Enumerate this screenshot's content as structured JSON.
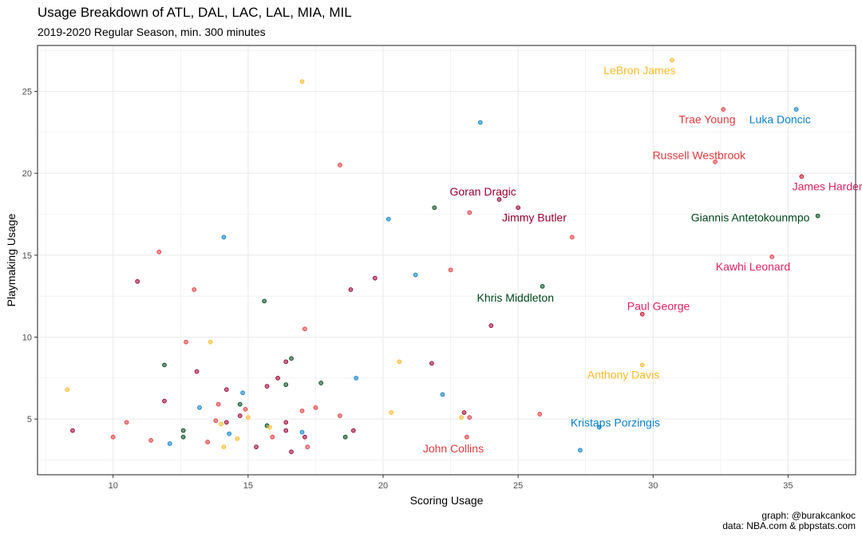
{
  "header": {
    "title": "Usage Breakdown of ATL, DAL, LAC, LAL, MIA, MIL",
    "subtitle": "2019-2020 Regular Season, min. 300 minutes"
  },
  "caption": {
    "line1": "graph: @burakcankoc",
    "line2": "data: NBA.com & pbpstats.com"
  },
  "colors": {
    "ATL": "#E03A3E",
    "DAL": "#0A7DC8",
    "LAC": "#C8102E",
    "LAL": "#FDB927",
    "MIA": "#98002E",
    "MIL": "#00471B",
    "LAC_label": "#E0245E",
    "grid": "#ebebeb",
    "panel_border": "#333333"
  },
  "chart_data": {
    "type": "scatter",
    "title": "Usage Breakdown of ATL, DAL, LAC, LAL, MIA, MIL",
    "subtitle": "2019-2020 Regular Season, min. 300 minutes",
    "xlabel": "Scoring Usage",
    "ylabel": "Playmaking Usage",
    "xlim": [
      7.2,
      37.5
    ],
    "ylim": [
      1.6,
      27.8
    ],
    "xticks": [
      10,
      15,
      20,
      25,
      30,
      35
    ],
    "yticks": [
      5,
      10,
      15,
      20,
      25
    ],
    "grid": true,
    "points": [
      {
        "x": 30.7,
        "y": 26.9,
        "team": "LAL"
      },
      {
        "x": 17.0,
        "y": 25.6,
        "team": "LAL"
      },
      {
        "x": 32.6,
        "y": 23.9,
        "team": "ATL"
      },
      {
        "x": 35.3,
        "y": 23.9,
        "team": "DAL"
      },
      {
        "x": 23.6,
        "y": 23.1,
        "team": "DAL"
      },
      {
        "x": 32.3,
        "y": 20.7,
        "team": "ATL"
      },
      {
        "x": 18.4,
        "y": 20.5,
        "team": "ATL"
      },
      {
        "x": 35.5,
        "y": 19.8,
        "team": "LAC"
      },
      {
        "x": 24.3,
        "y": 18.4,
        "team": "MIA"
      },
      {
        "x": 25.0,
        "y": 17.9,
        "team": "MIA"
      },
      {
        "x": 21.9,
        "y": 17.9,
        "team": "MIL"
      },
      {
        "x": 23.2,
        "y": 17.6,
        "team": "ATL"
      },
      {
        "x": 36.1,
        "y": 17.4,
        "team": "MIL"
      },
      {
        "x": 20.2,
        "y": 17.2,
        "team": "DAL"
      },
      {
        "x": 14.1,
        "y": 16.1,
        "team": "DAL"
      },
      {
        "x": 27.0,
        "y": 16.1,
        "team": "ATL"
      },
      {
        "x": 11.7,
        "y": 15.2,
        "team": "ATL"
      },
      {
        "x": 34.4,
        "y": 14.9,
        "team": "ATL"
      },
      {
        "x": 22.5,
        "y": 14.1,
        "team": "ATL"
      },
      {
        "x": 21.2,
        "y": 13.8,
        "team": "DAL"
      },
      {
        "x": 19.7,
        "y": 13.6,
        "team": "MIA"
      },
      {
        "x": 10.9,
        "y": 13.4,
        "team": "MIA"
      },
      {
        "x": 25.9,
        "y": 13.1,
        "team": "MIL"
      },
      {
        "x": 13.0,
        "y": 12.9,
        "team": "ATL"
      },
      {
        "x": 18.8,
        "y": 12.9,
        "team": "MIA"
      },
      {
        "x": 15.6,
        "y": 12.2,
        "team": "MIL"
      },
      {
        "x": 29.6,
        "y": 11.4,
        "team": "LAC"
      },
      {
        "x": 24.0,
        "y": 10.7,
        "team": "MIA"
      },
      {
        "x": 17.1,
        "y": 10.5,
        "team": "ATL"
      },
      {
        "x": 12.7,
        "y": 9.7,
        "team": "ATL"
      },
      {
        "x": 13.6,
        "y": 9.7,
        "team": "LAL"
      },
      {
        "x": 16.6,
        "y": 8.7,
        "team": "MIL"
      },
      {
        "x": 16.4,
        "y": 8.5,
        "team": "MIA"
      },
      {
        "x": 20.6,
        "y": 8.5,
        "team": "LAL"
      },
      {
        "x": 21.8,
        "y": 8.4,
        "team": "MIA"
      },
      {
        "x": 29.6,
        "y": 8.3,
        "team": "LAL"
      },
      {
        "x": 11.9,
        "y": 8.3,
        "team": "MIL"
      },
      {
        "x": 13.1,
        "y": 7.9,
        "team": "MIA"
      },
      {
        "x": 19.0,
        "y": 7.5,
        "team": "DAL"
      },
      {
        "x": 16.1,
        "y": 7.5,
        "team": "MIA"
      },
      {
        "x": 17.7,
        "y": 7.2,
        "team": "MIL"
      },
      {
        "x": 16.4,
        "y": 7.1,
        "team": "MIL"
      },
      {
        "x": 15.7,
        "y": 7.0,
        "team": "MIA"
      },
      {
        "x": 8.3,
        "y": 6.8,
        "team": "LAL"
      },
      {
        "x": 14.2,
        "y": 6.8,
        "team": "MIA"
      },
      {
        "x": 14.8,
        "y": 6.6,
        "team": "DAL"
      },
      {
        "x": 22.2,
        "y": 6.5,
        "team": "DAL"
      },
      {
        "x": 11.9,
        "y": 6.1,
        "team": "MIA"
      },
      {
        "x": 14.7,
        "y": 5.9,
        "team": "MIL"
      },
      {
        "x": 13.9,
        "y": 5.9,
        "team": "ATL"
      },
      {
        "x": 13.2,
        "y": 5.7,
        "team": "DAL"
      },
      {
        "x": 17.5,
        "y": 5.7,
        "team": "ATL"
      },
      {
        "x": 14.9,
        "y": 5.6,
        "team": "ATL"
      },
      {
        "x": 17.0,
        "y": 5.5,
        "team": "ATL"
      },
      {
        "x": 20.3,
        "y": 5.4,
        "team": "LAL"
      },
      {
        "x": 23.0,
        "y": 5.4,
        "team": "MIA"
      },
      {
        "x": 25.8,
        "y": 5.3,
        "team": "ATL"
      },
      {
        "x": 18.4,
        "y": 5.2,
        "team": "ATL"
      },
      {
        "x": 14.7,
        "y": 5.2,
        "team": "MIA"
      },
      {
        "x": 15.0,
        "y": 5.1,
        "team": "LAL"
      },
      {
        "x": 23.2,
        "y": 5.1,
        "team": "ATL"
      },
      {
        "x": 22.9,
        "y": 5.1,
        "team": "LAL"
      },
      {
        "x": 13.8,
        "y": 4.9,
        "team": "ATL"
      },
      {
        "x": 10.5,
        "y": 4.8,
        "team": "ATL"
      },
      {
        "x": 16.4,
        "y": 4.8,
        "team": "MIA"
      },
      {
        "x": 14.2,
        "y": 4.8,
        "team": "MIA"
      },
      {
        "x": 14.0,
        "y": 4.7,
        "team": "LAL"
      },
      {
        "x": 15.7,
        "y": 4.6,
        "team": "MIL"
      },
      {
        "x": 15.8,
        "y": 4.5,
        "team": "LAL"
      },
      {
        "x": 28.0,
        "y": 4.5,
        "team": "DAL"
      },
      {
        "x": 8.5,
        "y": 4.3,
        "team": "MIA"
      },
      {
        "x": 12.6,
        "y": 4.3,
        "team": "MIL"
      },
      {
        "x": 16.4,
        "y": 4.3,
        "team": "MIA"
      },
      {
        "x": 18.9,
        "y": 4.3,
        "team": "MIA"
      },
      {
        "x": 17.0,
        "y": 4.2,
        "team": "DAL"
      },
      {
        "x": 14.3,
        "y": 4.1,
        "team": "DAL"
      },
      {
        "x": 10.0,
        "y": 3.9,
        "team": "ATL"
      },
      {
        "x": 12.6,
        "y": 3.9,
        "team": "MIL"
      },
      {
        "x": 15.9,
        "y": 3.9,
        "team": "ATL"
      },
      {
        "x": 17.1,
        "y": 3.9,
        "team": "MIA"
      },
      {
        "x": 18.6,
        "y": 3.9,
        "team": "MIL"
      },
      {
        "x": 23.1,
        "y": 3.9,
        "team": "ATL"
      },
      {
        "x": 14.6,
        "y": 3.8,
        "team": "LAL"
      },
      {
        "x": 11.4,
        "y": 3.7,
        "team": "ATL"
      },
      {
        "x": 13.5,
        "y": 3.6,
        "team": "ATL"
      },
      {
        "x": 12.1,
        "y": 3.5,
        "team": "DAL"
      },
      {
        "x": 15.3,
        "y": 3.3,
        "team": "MIA"
      },
      {
        "x": 17.2,
        "y": 3.3,
        "team": "ATL"
      },
      {
        "x": 14.1,
        "y": 3.3,
        "team": "LAL"
      },
      {
        "x": 16.6,
        "y": 3.0,
        "team": "MIA"
      },
      {
        "x": 27.3,
        "y": 3.1,
        "team": "DAL"
      }
    ],
    "annotations": [
      {
        "text": "LeBron James",
        "x": 29.5,
        "y": 26.3,
        "team": "LAL"
      },
      {
        "text": "Trae Young",
        "x": 32.0,
        "y": 23.3,
        "team": "ATL"
      },
      {
        "text": "Luka Doncic",
        "x": 34.7,
        "y": 23.3,
        "team": "DAL"
      },
      {
        "text": "Russell Westbrook",
        "x": 31.7,
        "y": 21.1,
        "team": "ATL"
      },
      {
        "text": "James Harden",
        "x": 36.5,
        "y": 19.2,
        "team": "LAC"
      },
      {
        "text": "Goran Dragic",
        "x": 23.7,
        "y": 18.9,
        "team": "MIA"
      },
      {
        "text": "Jimmy Butler",
        "x": 25.6,
        "y": 17.3,
        "team": "MIA"
      },
      {
        "text": "Giannis Antetokounmpo",
        "x": 33.6,
        "y": 17.3,
        "team": "MIL"
      },
      {
        "text": "Kawhi Leonard",
        "x": 33.7,
        "y": 14.3,
        "team": "LAC"
      },
      {
        "text": "Khris Middleton",
        "x": 24.9,
        "y": 12.4,
        "team": "MIL"
      },
      {
        "text": "Paul George",
        "x": 30.2,
        "y": 11.9,
        "team": "LAC"
      },
      {
        "text": "Anthony Davis",
        "x": 28.9,
        "y": 7.7,
        "team": "LAL"
      },
      {
        "text": "Kristaps Porzingis",
        "x": 28.6,
        "y": 4.8,
        "team": "DAL"
      },
      {
        "text": "John Collins",
        "x": 22.6,
        "y": 3.2,
        "team": "ATL"
      }
    ]
  }
}
